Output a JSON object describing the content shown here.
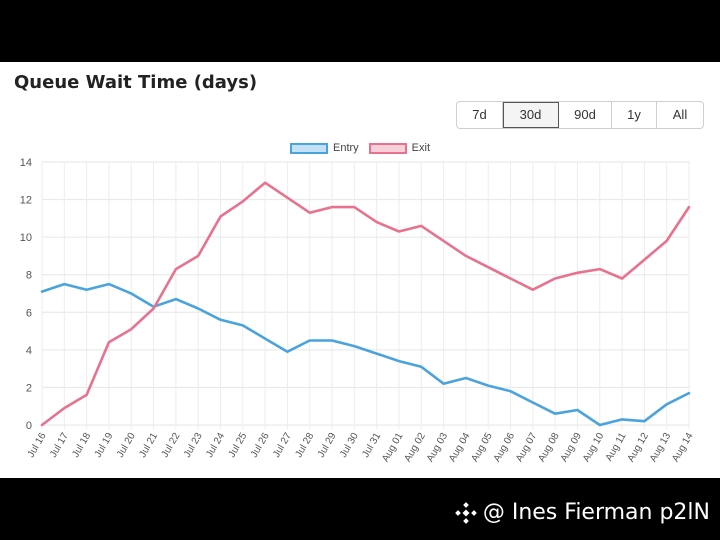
{
  "chart_data": {
    "type": "line",
    "title": "Queue Wait Time (days)",
    "xlabel": "",
    "ylabel": "",
    "ylim": [
      0,
      14
    ],
    "yticks": [
      0,
      2,
      4,
      6,
      8,
      10,
      12,
      14
    ],
    "grid": true,
    "legend_position": "top",
    "categories": [
      "Jul 16",
      "Jul 17",
      "Jul 18",
      "Jul 19",
      "Jul 20",
      "Jul 21",
      "Jul 22",
      "Jul 23",
      "Jul 24",
      "Jul 25",
      "Jul 26",
      "Jul 27",
      "Jul 28",
      "Jul 29",
      "Jul 30",
      "Jul 31",
      "Aug 01",
      "Aug 02",
      "Aug 03",
      "Aug 04",
      "Aug 05",
      "Aug 06",
      "Aug 07",
      "Aug 08",
      "Aug 09",
      "Aug 10",
      "Aug 11",
      "Aug 12",
      "Aug 13",
      "Aug 14"
    ],
    "series": [
      {
        "name": "Entry",
        "color": "#4ba3de",
        "values": [
          7.1,
          7.5,
          7.2,
          7.5,
          7.0,
          6.3,
          6.7,
          6.2,
          5.6,
          5.3,
          4.6,
          3.9,
          4.5,
          4.5,
          4.2,
          3.8,
          3.4,
          3.1,
          2.2,
          2.5,
          2.1,
          1.8,
          1.2,
          0.6,
          0.8,
          0.0,
          0.3,
          0.2,
          1.1,
          1.7
        ]
      },
      {
        "name": "Exit",
        "color": "#e8728e",
        "values": [
          0.0,
          0.9,
          1.6,
          4.4,
          5.1,
          6.2,
          8.3,
          9.0,
          11.1,
          11.9,
          12.9,
          12.1,
          11.3,
          11.6,
          11.6,
          10.8,
          10.3,
          10.6,
          9.8,
          9.0,
          8.4,
          7.8,
          7.2,
          7.8,
          8.1,
          8.3,
          7.8,
          8.8,
          9.8,
          11.6
        ]
      }
    ]
  },
  "range_selector": {
    "buttons": [
      "7d",
      "30d",
      "90d",
      "1y",
      "All"
    ],
    "active": "30d"
  },
  "watermark": {
    "text": "@ Ines Fierman p2lN",
    "icon": "diamond-logo-icon"
  }
}
